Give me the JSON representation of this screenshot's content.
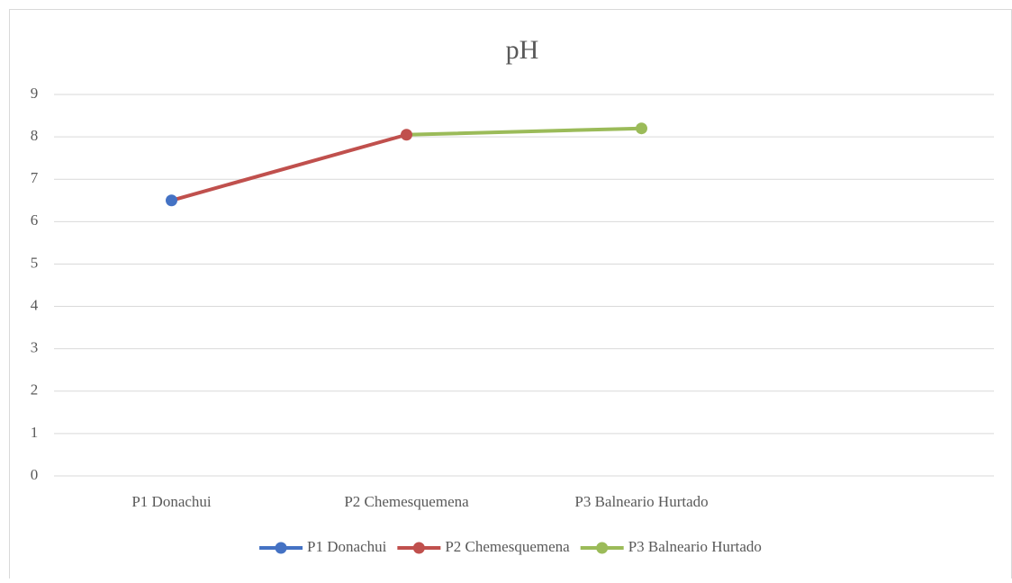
{
  "chart_data": {
    "type": "line",
    "title": "pH",
    "categories": [
      "P1 Donachui",
      "P2 Chemesquemena",
      "P3 Balneario Hurtado",
      null
    ],
    "values": [
      6.5,
      8.05,
      8.2,
      null
    ],
    "point_colors": [
      "#4472c4",
      "#c0504d",
      "#9bbb59",
      null
    ],
    "ylim": [
      0,
      9
    ],
    "yticks": [
      0,
      1,
      2,
      3,
      4,
      5,
      6,
      7,
      8,
      9
    ],
    "grid": true,
    "legend": "bottom"
  }
}
